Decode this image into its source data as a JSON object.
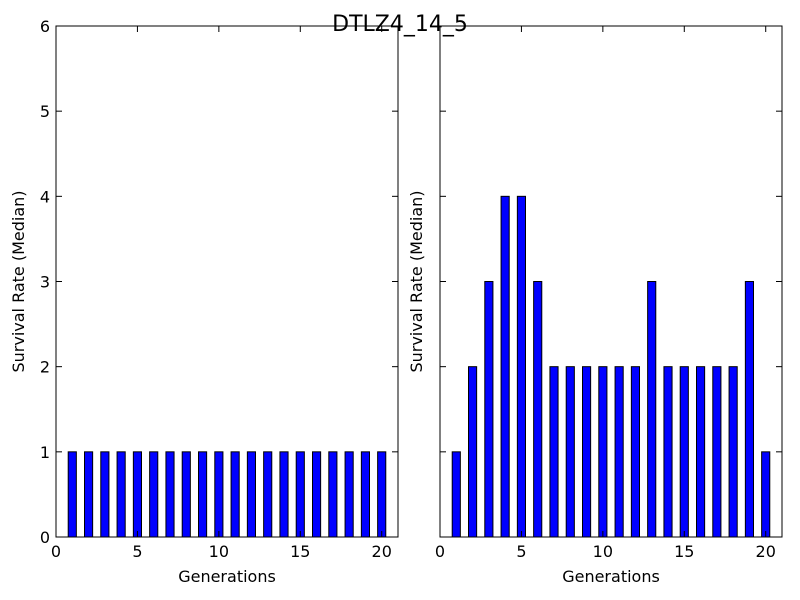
{
  "figure": {
    "title": "DTLZ4_14_5"
  },
  "chart_data": [
    {
      "type": "bar",
      "x": [
        1,
        2,
        3,
        4,
        5,
        6,
        7,
        8,
        9,
        10,
        11,
        12,
        13,
        14,
        15,
        16,
        17,
        18,
        19,
        20
      ],
      "values": [
        1,
        1,
        1,
        1,
        1,
        1,
        1,
        1,
        1,
        1,
        1,
        1,
        1,
        1,
        1,
        1,
        1,
        1,
        1,
        1
      ],
      "xlabel": "Generations",
      "ylabel": "Survival Rate (Median)",
      "xlim": [
        0,
        21
      ],
      "ylim": [
        0,
        6
      ],
      "xticks": [
        0,
        5,
        10,
        15,
        20
      ],
      "yticks": [
        0,
        1,
        2,
        3,
        4,
        5,
        6
      ],
      "show_ytick_labels": true,
      "bar_color": "#0000ff",
      "grid": false
    },
    {
      "type": "bar",
      "x": [
        1,
        2,
        3,
        4,
        5,
        6,
        7,
        8,
        9,
        10,
        11,
        12,
        13,
        14,
        15,
        16,
        17,
        18,
        19,
        20
      ],
      "values": [
        1,
        2,
        3,
        4,
        4,
        3,
        2,
        2,
        2,
        2,
        2,
        2,
        3,
        2,
        2,
        2,
        2,
        2,
        3,
        1
      ],
      "xlabel": "Generations",
      "ylabel": "Survival Rate (Median)",
      "xlim": [
        0,
        21
      ],
      "ylim": [
        0,
        6
      ],
      "xticks": [
        0,
        5,
        10,
        15,
        20
      ],
      "yticks": [
        0,
        1,
        2,
        3,
        4,
        5,
        6
      ],
      "show_ytick_labels": false,
      "bar_color": "#0000ff",
      "grid": false
    }
  ]
}
